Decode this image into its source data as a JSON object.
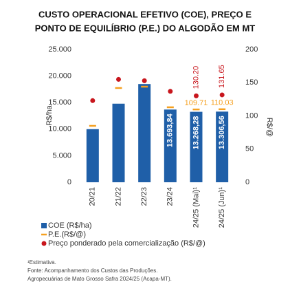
{
  "chart_data": {
    "type": "bar",
    "title": [
      "CUSTO OPERACIONAL EFETIVO (COE), PREÇO E",
      "PONTO DE EQUILÍBRIO (P.E.) DO ALGODÃO EM MT"
    ],
    "categories": [
      "20/21",
      "21/22",
      "22/23",
      "23/24",
      "24/25 (Mai)¹",
      "24/25 (Jun)¹"
    ],
    "ylabel": "R$/ha",
    "y2label": "R$/@",
    "ylim": [
      0,
      25000
    ],
    "yticks": [
      0,
      {
        "value": 5000,
        "label": "5.000"
      },
      {
        "value": 10000,
        "label": "10.000"
      },
      {
        "value": 15000,
        "label": "15.000"
      },
      {
        "value": 20000,
        "label": "20.000"
      },
      {
        "value": 25000,
        "label": "25.000"
      }
    ],
    "y2lim": [
      0,
      200
    ],
    "y2ticks": [
      0,
      50,
      100,
      150,
      200
    ],
    "series": [
      {
        "name": "COE (R$/ha)",
        "color": "#1f5fa8",
        "mark": "bar",
        "values": [
          10000,
          14800,
          18500,
          13693.84,
          13268.28,
          13306.56
        ],
        "value_labels": [
          null,
          null,
          null,
          "13.693,84",
          "13.268,28",
          "13.306,56"
        ]
      },
      {
        "name": "P.E.(R$/@)",
        "color": "#f5a020",
        "mark": "dash",
        "axis": "y2",
        "values": [
          85,
          142,
          144,
          113,
          109.71,
          110.03
        ],
        "value_labels": [
          null,
          null,
          null,
          null,
          "109.71",
          "110.03"
        ]
      },
      {
        "name": "Preço ponderado pela comercialização (R$/@)",
        "color": "#c8161d",
        "mark": "dot",
        "axis": "y2",
        "values": [
          123,
          155,
          153,
          137,
          130.2,
          131.65
        ],
        "value_labels": [
          null,
          null,
          null,
          null,
          "130.20",
          "131.65"
        ]
      }
    ],
    "notes": [
      "¹Estimativa.",
      "Fonte: Acompanhamento dos Custos das Produções.",
      "Agropecuárias de Mato Grosso Safra 2024/25 (Acapa-MT)."
    ]
  }
}
